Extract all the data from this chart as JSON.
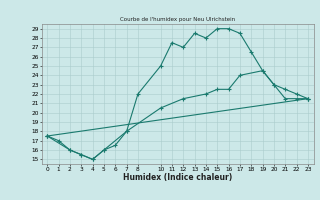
{
  "title": "Courbe de l'humidex pour Neu Ulrichstein",
  "xlabel": "Humidex (Indice chaleur)",
  "xlim": [
    -0.5,
    23.5
  ],
  "ylim": [
    14.5,
    29.5
  ],
  "xticks": [
    0,
    1,
    2,
    3,
    4,
    5,
    6,
    7,
    8,
    10,
    11,
    12,
    13,
    14,
    15,
    16,
    17,
    18,
    19,
    20,
    21,
    22,
    23
  ],
  "yticks": [
    15,
    16,
    17,
    18,
    19,
    20,
    21,
    22,
    23,
    24,
    25,
    26,
    27,
    28,
    29
  ],
  "bg_color": "#cce8e8",
  "line_color": "#1a7a6e",
  "grid_color": "#aacccc",
  "lines": [
    {
      "x": [
        0,
        1,
        2,
        3,
        4,
        5,
        6,
        7,
        8,
        10,
        11,
        12,
        13,
        14,
        15,
        16,
        17,
        18,
        19,
        20,
        21,
        22,
        23
      ],
      "y": [
        17.5,
        17.0,
        16.0,
        15.5,
        15.0,
        16.0,
        16.5,
        18.0,
        22.0,
        25.0,
        27.5,
        27.0,
        28.5,
        28.0,
        29.0,
        29.0,
        28.5,
        26.5,
        24.5,
        23.0,
        21.5,
        21.5,
        21.5
      ]
    },
    {
      "x": [
        0,
        2,
        3,
        4,
        5,
        7,
        10,
        12,
        14,
        15,
        16,
        17,
        19,
        20,
        21,
        22,
        23
      ],
      "y": [
        17.5,
        16.0,
        15.5,
        15.0,
        16.0,
        18.0,
        20.5,
        21.5,
        22.0,
        22.5,
        22.5,
        24.0,
        24.5,
        23.0,
        22.5,
        22.0,
        21.5
      ]
    },
    {
      "x": [
        0,
        23
      ],
      "y": [
        17.5,
        21.5
      ]
    }
  ]
}
